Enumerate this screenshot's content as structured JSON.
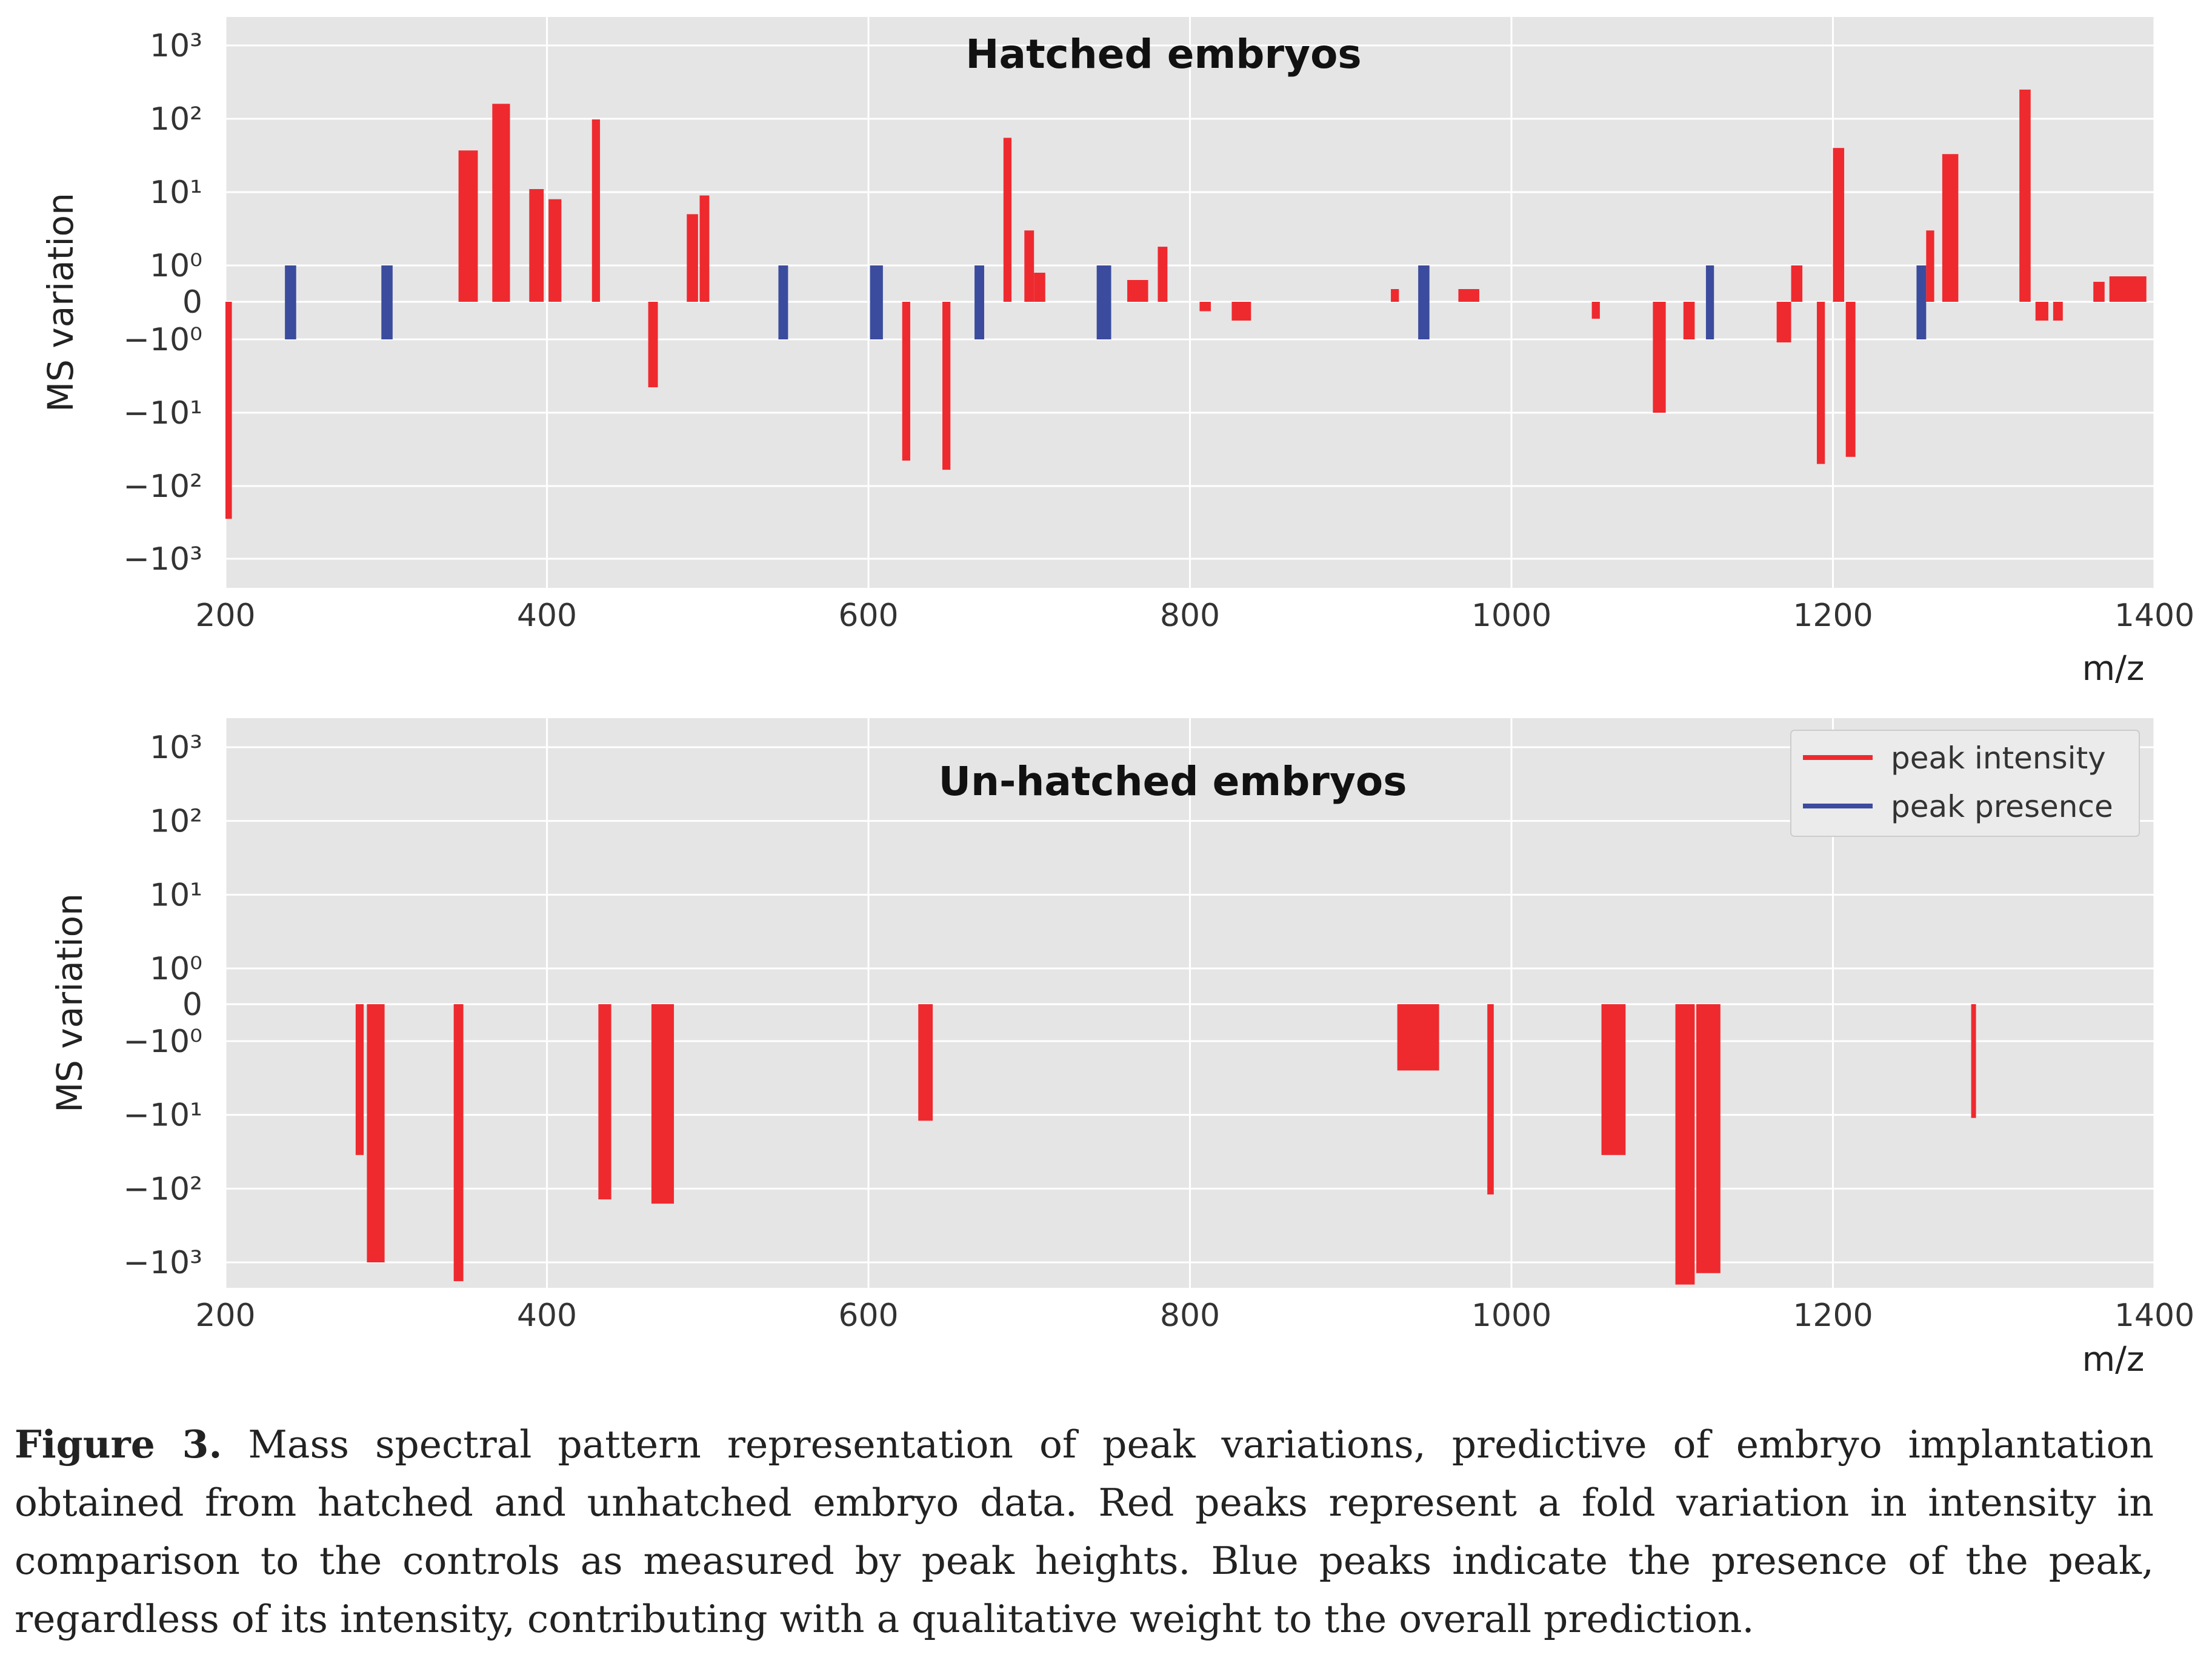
{
  "chart_data": [
    {
      "type": "bar",
      "title": "Hatched embryos",
      "xlabel": "m/z",
      "ylabel": "MS variation",
      "xlim": [
        200,
        1400
      ],
      "xticks": [
        "200",
        "400",
        "600",
        "800",
        "1000",
        "1200",
        "1400"
      ],
      "yticks": [
        "10³",
        "10²",
        "10¹",
        "10⁰",
        "0",
        "−10⁰",
        "−10¹",
        "−10²",
        "−10³"
      ],
      "colors": {
        "peak_intensity": "#ee2a2f",
        "peak_presence": "#3b4c9e"
      },
      "bars": [
        {
          "x0": 200,
          "x1": 204,
          "type": "intensity",
          "value": -280
        },
        {
          "x0": 237,
          "x1": 244,
          "type": "presence",
          "value": 1
        },
        {
          "x0": 237,
          "x1": 244,
          "type": "presence",
          "value": -1
        },
        {
          "x0": 297,
          "x1": 304,
          "type": "presence",
          "value": 1
        },
        {
          "x0": 297,
          "x1": 304,
          "type": "presence",
          "value": -1
        },
        {
          "x0": 345,
          "x1": 357,
          "type": "intensity",
          "value": 37
        },
        {
          "x0": 366,
          "x1": 377,
          "type": "intensity",
          "value": 160
        },
        {
          "x0": 389,
          "x1": 398,
          "type": "intensity",
          "value": 11
        },
        {
          "x0": 401,
          "x1": 409,
          "type": "intensity",
          "value": 8
        },
        {
          "x0": 428,
          "x1": 433,
          "type": "intensity",
          "value": 98
        },
        {
          "x0": 463,
          "x1": 469,
          "type": "intensity",
          "value": -4.5
        },
        {
          "x0": 487,
          "x1": 494,
          "type": "intensity",
          "value": 5
        },
        {
          "x0": 495,
          "x1": 501,
          "type": "intensity",
          "value": 9
        },
        {
          "x0": 544,
          "x1": 550,
          "type": "presence",
          "value": 1
        },
        {
          "x0": 544,
          "x1": 550,
          "type": "presence",
          "value": -1
        },
        {
          "x0": 601,
          "x1": 609,
          "type": "presence",
          "value": 1
        },
        {
          "x0": 601,
          "x1": 609,
          "type": "presence",
          "value": -1
        },
        {
          "x0": 621,
          "x1": 626,
          "type": "intensity",
          "value": -45
        },
        {
          "x0": 646,
          "x1": 651,
          "type": "intensity",
          "value": -60
        },
        {
          "x0": 666,
          "x1": 672,
          "type": "presence",
          "value": 1
        },
        {
          "x0": 666,
          "x1": 672,
          "type": "presence",
          "value": -1
        },
        {
          "x0": 684,
          "x1": 689,
          "type": "intensity",
          "value": 55
        },
        {
          "x0": 697,
          "x1": 703,
          "type": "intensity",
          "value": 3
        },
        {
          "x0": 703,
          "x1": 710,
          "type": "intensity",
          "value": 0.8
        },
        {
          "x0": 742,
          "x1": 751,
          "type": "presence",
          "value": 1
        },
        {
          "x0": 742,
          "x1": 751,
          "type": "presence",
          "value": -1
        },
        {
          "x0": 761,
          "x1": 774,
          "type": "intensity",
          "value": 0.6
        },
        {
          "x0": 780,
          "x1": 786,
          "type": "intensity",
          "value": 1.8
        },
        {
          "x0": 806,
          "x1": 813,
          "type": "intensity",
          "value": -0.25
        },
        {
          "x0": 826,
          "x1": 838,
          "type": "intensity",
          "value": -0.5
        },
        {
          "x0": 925,
          "x1": 930,
          "type": "intensity",
          "value": 0.35
        },
        {
          "x0": 942,
          "x1": 949,
          "type": "presence",
          "value": 1
        },
        {
          "x0": 942,
          "x1": 949,
          "type": "presence",
          "value": -1
        },
        {
          "x0": 967,
          "x1": 980,
          "type": "intensity",
          "value": 0.35
        },
        {
          "x0": 1050,
          "x1": 1055,
          "type": "intensity",
          "value": -0.45
        },
        {
          "x0": 1088,
          "x1": 1096,
          "type": "intensity",
          "value": -10
        },
        {
          "x0": 1107,
          "x1": 1114,
          "type": "intensity",
          "value": -1
        },
        {
          "x0": 1121,
          "x1": 1126,
          "type": "presence",
          "value": 1
        },
        {
          "x0": 1121,
          "x1": 1126,
          "type": "presence",
          "value": -1
        },
        {
          "x0": 1165,
          "x1": 1174,
          "type": "intensity",
          "value": -1.1
        },
        {
          "x0": 1174,
          "x1": 1181,
          "type": "intensity",
          "value": 1
        },
        {
          "x0": 1190,
          "x1": 1195,
          "type": "intensity",
          "value": -50
        },
        {
          "x0": 1200,
          "x1": 1207,
          "type": "intensity",
          "value": 40
        },
        {
          "x0": 1208,
          "x1": 1214,
          "type": "intensity",
          "value": -40
        },
        {
          "x0": 1252,
          "x1": 1258,
          "type": "presence",
          "value": 1
        },
        {
          "x0": 1252,
          "x1": 1258,
          "type": "presence",
          "value": -1
        },
        {
          "x0": 1258,
          "x1": 1263,
          "type": "intensity",
          "value": 3
        },
        {
          "x0": 1268,
          "x1": 1278,
          "type": "intensity",
          "value": 33
        },
        {
          "x0": 1316,
          "x1": 1323,
          "type": "intensity",
          "value": 250
        },
        {
          "x0": 1326,
          "x1": 1334,
          "type": "intensity",
          "value": -0.5
        },
        {
          "x0": 1337,
          "x1": 1343,
          "type": "intensity",
          "value": -0.5
        },
        {
          "x0": 1362,
          "x1": 1369,
          "type": "intensity",
          "value": 0.55
        },
        {
          "x0": 1372,
          "x1": 1395,
          "type": "intensity",
          "value": 0.7
        }
      ]
    },
    {
      "type": "bar",
      "title": "Un-hatched embryos",
      "xlabel": "m/z",
      "ylabel": "MS variation",
      "xlim": [
        200,
        1400
      ],
      "xticks": [
        "200",
        "400",
        "600",
        "800",
        "1000",
        "1200",
        "1400"
      ],
      "yticks": [
        "10³",
        "10²",
        "10¹",
        "10⁰",
        "0",
        "−10⁰",
        "−10¹",
        "−10²",
        "−10³"
      ],
      "legend": {
        "position": "top-right",
        "entries": [
          {
            "label": "peak intensity",
            "color": "#ee2a2f"
          },
          {
            "label": "peak presence",
            "color": "#3b4c9e"
          }
        ]
      },
      "bars": [
        {
          "x0": 281,
          "x1": 286,
          "type": "intensity",
          "value": -35
        },
        {
          "x0": 288,
          "x1": 299,
          "type": "intensity",
          "value": -1000
        },
        {
          "x0": 342,
          "x1": 348,
          "type": "intensity",
          "value": -1800
        },
        {
          "x0": 432,
          "x1": 440,
          "type": "intensity",
          "value": -140
        },
        {
          "x0": 465,
          "x1": 479,
          "type": "intensity",
          "value": -160
        },
        {
          "x0": 631,
          "x1": 640,
          "type": "intensity",
          "value": -12
        },
        {
          "x0": 929,
          "x1": 955,
          "type": "intensity",
          "value": -2.5
        },
        {
          "x0": 985,
          "x1": 989,
          "type": "intensity",
          "value": -120
        },
        {
          "x0": 1056,
          "x1": 1071,
          "type": "intensity",
          "value": -35
        },
        {
          "x0": 1102,
          "x1": 1114,
          "type": "intensity",
          "value": -2000
        },
        {
          "x0": 1115,
          "x1": 1130,
          "type": "intensity",
          "value": -1400
        },
        {
          "x0": 1286,
          "x1": 1289,
          "type": "intensity",
          "value": -11
        }
      ]
    }
  ],
  "caption": {
    "label": "Figure 3.",
    "text": " Mass spectral pattern representation of peak variations, predictive of embryo implantation obtained from hatched and unhatched embryo data. Red peaks represent a fold variation in intensity in comparison to the controls as measured by peak heights. Blue peaks indicate the presence of the peak, regardless of its intensity, contributing with a qualitative weight to the overall prediction."
  }
}
